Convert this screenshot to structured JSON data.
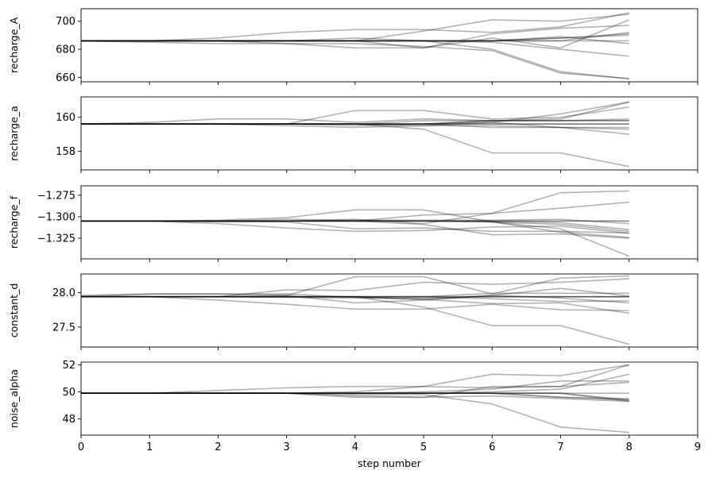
{
  "chart_data": {
    "type": "line",
    "xlabel": "step number",
    "x": [
      0,
      1,
      2,
      3,
      4,
      5,
      6,
      7,
      8
    ],
    "xlim": [
      0,
      9
    ],
    "xticks": [
      0,
      1,
      2,
      3,
      4,
      5,
      6,
      7,
      8,
      9
    ],
    "xtick_labels": [
      "0",
      "1",
      "2",
      "3",
      "4",
      "5",
      "6",
      "7",
      "8",
      "9"
    ],
    "line_color": "#000000",
    "line_alpha": 0.3,
    "grid": false,
    "panels": [
      {
        "ylabel": "recharge_A",
        "ylim": [
          656.8,
          708.9
        ],
        "yticks": [
          660,
          680,
          700
        ],
        "ytick_labels": [
          "660",
          "680",
          "700"
        ],
        "series": [
          {
            "values": [
              686,
              686,
              686,
              686,
              686,
              686,
              686,
              688,
              691
            ]
          },
          {
            "values": [
              686,
              686,
              686,
              686,
              686,
              686,
              686,
              688,
              690
            ]
          },
          {
            "values": [
              686,
              686,
              688,
              692,
              694,
              694,
              692,
              696,
              706
            ]
          },
          {
            "values": [
              686,
              685,
              684,
              684,
              684,
              682,
              679,
              663,
              659
            ]
          },
          {
            "values": [
              686,
              686,
              686,
              684,
              681,
              681,
              691,
              695,
              697
            ]
          },
          {
            "values": [
              686,
              686,
              686,
              686,
              688,
              686,
              680,
              664,
              659
            ]
          },
          {
            "values": [
              686,
              686,
              686,
              686,
              686,
              686,
              686,
              686,
              686
            ]
          },
          {
            "values": [
              686,
              686,
              686,
              686,
              686,
              693,
              701,
              700,
              705
            ]
          },
          {
            "values": [
              686,
              686,
              686,
              686,
              686,
              686,
              686,
              686,
              692
            ]
          },
          {
            "values": [
              686,
              686,
              686,
              686,
              686,
              686,
              685,
              680,
              675
            ]
          },
          {
            "values": [
              686,
              686,
              686,
              686,
              686,
              686,
              686,
              689,
              684
            ]
          },
          {
            "values": [
              686,
              686,
              686,
              686,
              686,
              681,
              688,
              681,
              701
            ]
          }
        ]
      },
      {
        "ylabel": "recharge_a",
        "ylim": [
          156.9,
          161.2
        ],
        "yticks": [
          158,
          160
        ],
        "ytick_labels": [
          "158",
          "160"
        ],
        "series": [
          {
            "values": [
              159.6,
              159.6,
              159.6,
              159.6,
              159.6,
              159.6,
              159.8,
              159.8,
              159.9
            ]
          },
          {
            "values": [
              159.6,
              159.7,
              159.9,
              159.9,
              159.7,
              159.9,
              159.8,
              159.9,
              160.9
            ]
          },
          {
            "values": [
              159.6,
              159.6,
              159.6,
              159.6,
              159.6,
              159.3,
              157.9,
              157.9,
              157.1
            ]
          },
          {
            "values": [
              159.6,
              159.6,
              159.6,
              159.6,
              160.4,
              160.4,
              159.9,
              160.0,
              160.6
            ]
          },
          {
            "values": [
              159.6,
              159.6,
              159.6,
              159.5,
              159.4,
              159.5,
              159.5,
              159.4,
              159.0
            ]
          },
          {
            "values": [
              159.6,
              159.6,
              159.6,
              159.6,
              159.6,
              159.6,
              159.6,
              159.6,
              159.6
            ]
          },
          {
            "values": [
              159.6,
              159.6,
              159.6,
              159.6,
              159.6,
              159.6,
              159.4,
              159.4,
              159.4
            ]
          },
          {
            "values": [
              159.6,
              159.6,
              159.6,
              159.6,
              159.6,
              159.8,
              159.8,
              159.8,
              159.8
            ]
          },
          {
            "values": [
              159.6,
              159.6,
              159.6,
              159.6,
              159.6,
              159.6,
              159.6,
              159.6,
              159.6
            ]
          },
          {
            "values": [
              159.6,
              159.6,
              159.6,
              159.6,
              159.6,
              159.5,
              159.7,
              160.2,
              160.9
            ]
          },
          {
            "values": [
              159.6,
              159.6,
              159.6,
              159.6,
              159.5,
              159.6,
              159.7,
              159.4,
              159.3
            ]
          },
          {
            "values": [
              159.6,
              159.6,
              159.6,
              159.6,
              159.6,
              159.6,
              159.8,
              159.8,
              159.8
            ]
          }
        ]
      },
      {
        "ylabel": "recharge_f",
        "ylim": [
          -1.349,
          -1.264
        ],
        "yticks": [
          -1.325,
          -1.3,
          -1.275
        ],
        "ytick_labels": [
          "−1.325",
          "−1.300",
          "−1.275"
        ],
        "series": [
          {
            "values": [
              -1.305,
              -1.305,
              -1.305,
              -1.305,
              -1.305,
              -1.305,
              -1.305,
              -1.305,
              -1.305
            ]
          },
          {
            "values": [
              -1.305,
              -1.305,
              -1.305,
              -1.305,
              -1.305,
              -1.305,
              -1.306,
              -1.318,
              -1.324
            ]
          },
          {
            "values": [
              -1.305,
              -1.305,
              -1.305,
              -1.305,
              -1.303,
              -1.308,
              -1.296,
              -1.272,
              -1.27
            ]
          },
          {
            "values": [
              -1.305,
              -1.305,
              -1.305,
              -1.305,
              -1.305,
              -1.305,
              -1.306,
              -1.309,
              -1.317
            ]
          },
          {
            "values": [
              -1.305,
              -1.305,
              -1.305,
              -1.303,
              -1.304,
              -1.304,
              -1.304,
              -1.303,
              -1.308
            ]
          },
          {
            "values": [
              -1.305,
              -1.305,
              -1.306,
              -1.306,
              -1.314,
              -1.313,
              -1.317,
              -1.317,
              -1.319
            ]
          },
          {
            "values": [
              -1.305,
              -1.305,
              -1.304,
              -1.301,
              -1.292,
              -1.292,
              -1.306,
              -1.314,
              -1.346
            ]
          },
          {
            "values": [
              -1.305,
              -1.305,
              -1.308,
              -1.313,
              -1.317,
              -1.316,
              -1.312,
              -1.311,
              -1.319
            ]
          },
          {
            "values": [
              -1.305,
              -1.305,
              -1.305,
              -1.305,
              -1.305,
              -1.305,
              -1.305,
              -1.305,
              -1.305
            ]
          },
          {
            "values": [
              -1.305,
              -1.305,
              -1.305,
              -1.305,
              -1.305,
              -1.298,
              -1.296,
              -1.29,
              -1.283
            ]
          },
          {
            "values": [
              -1.305,
              -1.305,
              -1.305,
              -1.305,
              -1.305,
              -1.309,
              -1.321,
              -1.32,
              -1.325
            ]
          },
          {
            "values": [
              -1.305,
              -1.305,
              -1.305,
              -1.305,
              -1.305,
              -1.305,
              -1.305,
              -1.307,
              -1.315
            ]
          }
        ]
      },
      {
        "ylabel": "constant_d",
        "ylim": [
          27.21,
          28.27
        ],
        "yticks": [
          27.5,
          28.0
        ],
        "ytick_labels": [
          "27.5",
          "28.0"
        ],
        "series": [
          {
            "values": [
              27.96,
              27.98,
              27.98,
              27.98,
              27.93,
              27.9,
              27.96,
              28.06,
              27.95
            ]
          },
          {
            "values": [
              27.94,
              27.94,
              27.94,
              27.93,
              27.92,
              27.92,
              27.94,
              27.94,
              27.94
            ]
          },
          {
            "values": [
              27.94,
              27.94,
              27.94,
              27.96,
              28.23,
              28.23,
              27.98,
              28.21,
              28.24
            ]
          },
          {
            "values": [
              27.94,
              27.94,
              27.94,
              27.94,
              27.94,
              27.94,
              27.94,
              27.94,
              27.94
            ]
          },
          {
            "values": [
              27.94,
              27.94,
              27.89,
              27.83,
              27.76,
              27.76,
              27.83,
              27.75,
              27.74
            ]
          },
          {
            "values": [
              27.94,
              27.94,
              27.94,
              27.94,
              27.94,
              27.94,
              27.91,
              27.87,
              27.88
            ]
          },
          {
            "values": [
              27.94,
              27.94,
              27.94,
              28.04,
              28.03,
              28.15,
              28.12,
              28.15,
              28.2
            ]
          },
          {
            "values": [
              27.94,
              27.94,
              27.94,
              27.94,
              27.94,
              27.79,
              27.52,
              27.52,
              27.25
            ]
          },
          {
            "values": [
              27.94,
              27.94,
              27.94,
              27.94,
              27.94,
              27.9,
              27.84,
              27.85,
              27.7
            ]
          },
          {
            "values": [
              27.94,
              27.94,
              27.94,
              27.94,
              27.94,
              27.94,
              27.94,
              27.94,
              27.94
            ]
          },
          {
            "values": [
              27.94,
              27.98,
              27.98,
              27.96,
              27.85,
              27.89,
              27.96,
              27.92,
              27.85
            ]
          },
          {
            "values": [
              27.94,
              27.94,
              27.94,
              27.94,
              27.94,
              27.94,
              27.99,
              27.99,
              27.99
            ]
          }
        ]
      },
      {
        "ylabel": "noise_alpha",
        "ylim": [
          46.8,
          52.2
        ],
        "yticks": [
          48,
          50,
          52
        ],
        "ytick_labels": [
          "48",
          "50",
          "52"
        ],
        "series": [
          {
            "values": [
              49.9,
              49.9,
              49.9,
              49.9,
              49.9,
              49.9,
              49.9,
              49.9,
              49.3
            ]
          },
          {
            "values": [
              49.9,
              49.9,
              50.1,
              50.3,
              50.4,
              50.4,
              50.3,
              50.4,
              52.0
            ]
          },
          {
            "values": [
              49.9,
              49.9,
              49.9,
              49.9,
              49.8,
              49.8,
              49.1,
              47.4,
              47.0
            ]
          },
          {
            "values": [
              49.9,
              49.9,
              49.9,
              49.9,
              50.0,
              50.4,
              51.3,
              51.2,
              52.0
            ]
          },
          {
            "values": [
              49.9,
              49.9,
              49.9,
              49.9,
              49.6,
              49.6,
              50.4,
              50.4,
              50.7
            ]
          },
          {
            "values": [
              49.9,
              49.9,
              49.9,
              49.9,
              49.9,
              49.9,
              49.9,
              49.9,
              49.9
            ]
          },
          {
            "values": [
              49.9,
              49.9,
              49.9,
              49.9,
              49.9,
              49.9,
              49.9,
              49.9,
              49.4
            ]
          },
          {
            "values": [
              49.9,
              49.9,
              49.9,
              49.9,
              49.9,
              50.0,
              50.2,
              50.8,
              50.8
            ]
          },
          {
            "values": [
              49.9,
              49.9,
              49.9,
              49.9,
              49.9,
              49.9,
              50.0,
              50.2,
              51.3
            ]
          },
          {
            "values": [
              49.9,
              49.9,
              49.9,
              49.9,
              49.9,
              49.9,
              49.9,
              49.6,
              49.5
            ]
          },
          {
            "values": [
              49.9,
              49.9,
              49.9,
              49.9,
              49.7,
              49.6,
              49.7,
              49.5,
              49.3
            ]
          },
          {
            "values": [
              49.9,
              49.9,
              49.9,
              49.9,
              49.9,
              49.9,
              49.9,
              49.6,
              49.4
            ]
          }
        ]
      }
    ]
  }
}
